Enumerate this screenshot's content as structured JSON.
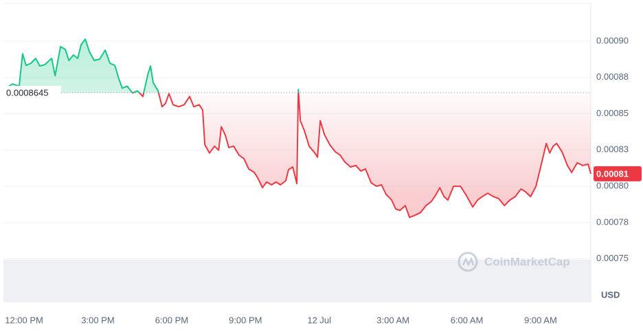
{
  "chart_data": {
    "type": "line",
    "baseline": 0.0008645,
    "baseline_label": "0.0008645",
    "price_label": "0.00081",
    "unit": "USD",
    "watermark": "CoinMarketCap",
    "colors": {
      "up": "#16c784",
      "down": "#ea3943"
    },
    "xlim": [
      11.16,
      35.04
    ],
    "xticks": [
      {
        "value": 12,
        "label": "12:00 PM"
      },
      {
        "value": 15,
        "label": "3:00 PM"
      },
      {
        "value": 18,
        "label": "6:00 PM"
      },
      {
        "value": 21,
        "label": "9:00 PM"
      },
      {
        "value": 24,
        "label": "12 Jul"
      },
      {
        "value": 27,
        "label": "3:00 AM"
      },
      {
        "value": 30,
        "label": "6:00 AM"
      },
      {
        "value": 33,
        "label": "9:00 AM"
      }
    ],
    "ylim": [
      0.00072,
      0.000926
    ],
    "yticks": [
      {
        "value": 0.0009,
        "label": "0.00090"
      },
      {
        "value": 0.000875,
        "label": "0.00088"
      },
      {
        "value": 0.00085,
        "label": "0.00085"
      },
      {
        "value": 0.000825,
        "label": "0.00083"
      },
      {
        "value": 0.0008,
        "label": "0.00080"
      },
      {
        "value": 0.000775,
        "label": "0.00078"
      },
      {
        "value": 0.00075,
        "label": "0.00075"
      }
    ],
    "grid": true,
    "x": [
      11.16,
      11.53,
      11.8,
      11.94,
      12.08,
      12.28,
      12.47,
      12.64,
      12.84,
      13.12,
      13.26,
      13.48,
      13.68,
      13.82,
      14.01,
      14.18,
      14.32,
      14.49,
      14.65,
      14.85,
      15.07,
      15.3,
      15.49,
      15.69,
      15.83,
      15.99,
      16.19,
      16.41,
      16.61,
      16.83,
      17.03,
      17.14,
      17.25,
      17.45,
      17.61,
      17.75,
      17.89,
      18.06,
      18.28,
      18.51,
      18.73,
      18.9,
      19.12,
      19.26,
      19.35,
      19.54,
      19.74,
      19.91,
      20.02,
      20.18,
      20.32,
      20.52,
      20.74,
      20.94,
      21.13,
      21.36,
      21.53,
      21.69,
      21.86,
      22.06,
      22.25,
      22.42,
      22.64,
      22.75,
      22.92,
      23.09,
      23.15,
      23.23,
      23.4,
      23.59,
      23.82,
      23.93,
      24.04,
      24.21,
      24.43,
      24.65,
      24.85,
      25.04,
      25.27,
      25.49,
      25.69,
      25.88,
      26.11,
      26.33,
      26.53,
      26.72,
      26.94,
      27.11,
      27.28,
      27.5,
      27.67,
      27.89,
      28.12,
      28.34,
      28.56,
      28.73,
      28.9,
      29.07,
      29.23,
      29.46,
      29.74,
      29.96,
      30.24,
      30.44,
      30.63,
      30.85,
      31.08,
      31.3,
      31.53,
      31.75,
      31.97,
      32.2,
      32.39,
      32.59,
      32.81,
      33.03,
      33.23,
      33.37,
      33.51,
      33.65,
      33.87,
      34.09,
      34.26,
      34.49,
      34.71,
      34.93,
      35.04
    ],
    "values": [
      0.0008667,
      0.0008705,
      0.000869,
      0.0008914,
      0.0008833,
      0.0008848,
      0.0008881,
      0.0008829,
      0.0008838,
      0.0008881,
      0.0008762,
      0.0008962,
      0.0008943,
      0.0008867,
      0.0008905,
      0.0008881,
      0.0008976,
      0.0009014,
      0.0008929,
      0.0008867,
      0.0008876,
      0.0008938,
      0.0008848,
      0.0008833,
      0.0008752,
      0.0008676,
      0.000869,
      0.0008643,
      0.0008657,
      0.0008619,
      0.0008771,
      0.0008829,
      0.0008714,
      0.0008657,
      0.0008548,
      0.0008571,
      0.0008638,
      0.0008562,
      0.0008548,
      0.0008562,
      0.0008619,
      0.0008548,
      0.0008562,
      0.0008524,
      0.0008286,
      0.0008229,
      0.0008276,
      0.0008248,
      0.000841,
      0.0008352,
      0.0008267,
      0.0008276,
      0.0008214,
      0.000819,
      0.0008119,
      0.0008095,
      0.0008048,
      0.000799,
      0.0008029,
      0.000801,
      0.0008029,
      0.000801,
      0.0008038,
      0.0008114,
      0.0008133,
      0.0008019,
      0.0008667,
      0.0008452,
      0.0008381,
      0.0008276,
      0.0008229,
      0.00082,
      0.0008452,
      0.0008357,
      0.0008286,
      0.0008238,
      0.0008214,
      0.0008167,
      0.0008133,
      0.0008143,
      0.0008105,
      0.0008119,
      0.0008024,
      0.0008,
      0.000801,
      0.0007943,
      0.0007905,
      0.0007843,
      0.0007833,
      0.0007867,
      0.0007786,
      0.00078,
      0.0007819,
      0.0007867,
      0.0007895,
      0.0007938,
      0.000799,
      0.0007929,
      0.0007905,
      0.0008,
      0.0008,
      0.0007943,
      0.0007857,
      0.0007905,
      0.0007929,
      0.0007952,
      0.0007929,
      0.0007914,
      0.0007867,
      0.0007905,
      0.0007929,
      0.0007981,
      0.0007962,
      0.0007929,
      0.0008,
      0.0008152,
      0.0008295,
      0.0008229,
      0.0008276,
      0.0008295,
      0.0008238,
      0.0008143,
      0.0008095,
      0.0008162,
      0.0008143,
      0.0008152,
      0.0008086
    ]
  }
}
